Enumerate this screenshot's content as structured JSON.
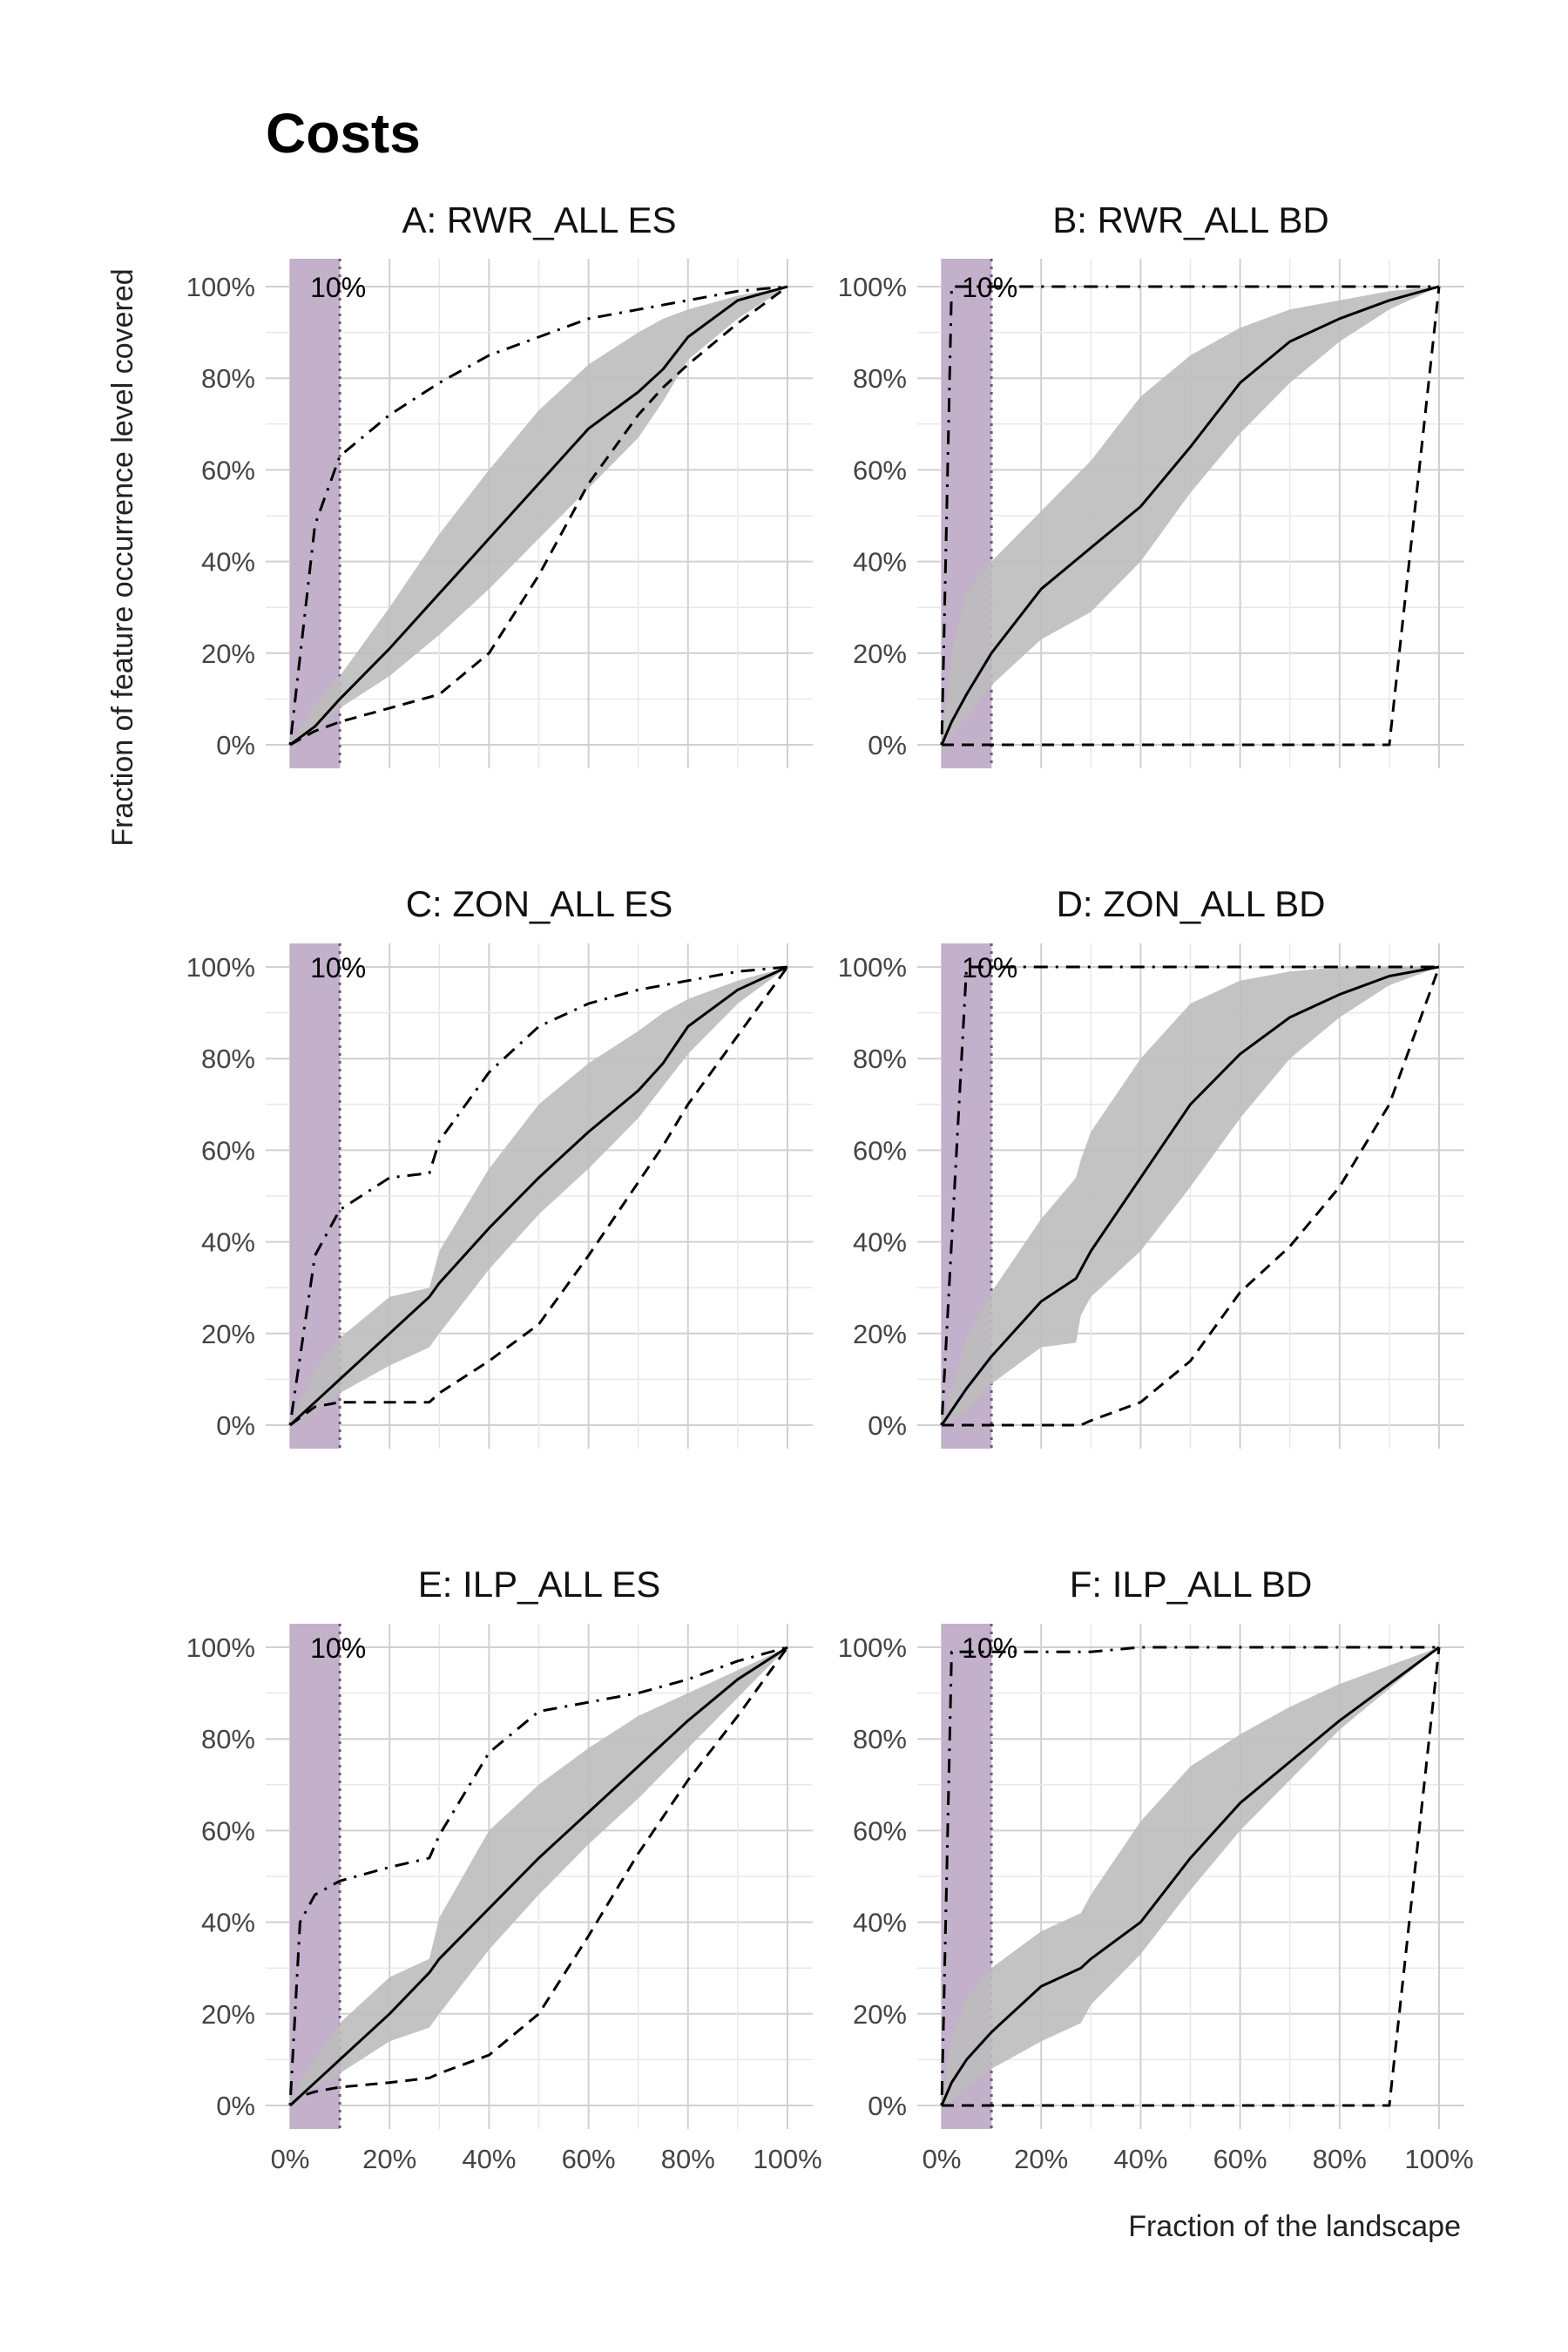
{
  "figure": {
    "title": "Costs",
    "xlabel": "Fraction of the landscape",
    "ylabel": "Fraction of feature occurrence level covered",
    "highlight_label": "10%",
    "highlight_value": 10,
    "x_ticks": [
      "0%",
      "20%",
      "40%",
      "60%",
      "80%",
      "100%"
    ],
    "y_ticks": [
      "0%",
      "20%",
      "40%",
      "60%",
      "80%",
      "100%"
    ],
    "colors": {
      "band": "#bdbdbd",
      "highlight": "#c3b1cb",
      "line": "#000000",
      "grid": "#d9d9d9"
    }
  },
  "chart_data": [
    {
      "type": "line",
      "title": "A: RWR_ALL ES",
      "xlim": [
        0,
        100
      ],
      "ylim": [
        0,
        100
      ],
      "grid": true,
      "x": [
        0,
        5,
        10,
        20,
        30,
        40,
        50,
        60,
        70,
        75,
        80,
        90,
        100
      ],
      "band_lower": [
        0,
        3,
        8,
        15,
        24,
        34,
        45,
        56,
        67,
        75,
        84,
        93,
        100
      ],
      "band_upper": [
        0,
        9,
        15,
        30,
        46,
        60,
        73,
        83,
        90,
        93,
        95,
        98,
        100
      ],
      "series": [
        {
          "style": "solid",
          "values": [
            0,
            4,
            10,
            21,
            33,
            45,
            57,
            69,
            77,
            82,
            89,
            97,
            100
          ]
        },
        {
          "style": "dashed",
          "values": [
            0,
            3,
            5,
            8,
            11,
            20,
            37,
            57,
            72,
            78,
            83,
            92,
            100
          ]
        },
        {
          "style": "dotdash",
          "values": [
            0,
            48,
            63,
            72,
            79,
            85,
            89,
            93,
            95,
            96,
            97,
            99,
            100
          ]
        }
      ]
    },
    {
      "type": "line",
      "title": "B: RWR_ALL BD",
      "xlim": [
        0,
        100
      ],
      "ylim": [
        0,
        100
      ],
      "grid": true,
      "x": [
        0,
        2,
        5,
        10,
        20,
        30,
        40,
        50,
        60,
        70,
        80,
        90,
        100
      ],
      "band_lower": [
        0,
        2,
        6,
        13,
        23,
        29,
        40,
        55,
        68,
        79,
        88,
        95,
        100
      ],
      "band_upper": [
        0,
        20,
        33,
        40,
        51,
        62,
        76,
        85,
        91,
        95,
        97,
        99,
        100
      ],
      "series": [
        {
          "style": "solid",
          "values": [
            0,
            5,
            11,
            20,
            34,
            43,
            52,
            65,
            79,
            88,
            93,
            97,
            100
          ]
        },
        {
          "style": "dashed",
          "values": [
            0,
            0,
            0,
            0,
            0,
            0,
            0,
            0,
            0,
            0,
            0,
            0,
            100
          ]
        },
        {
          "style": "dotdash",
          "values": [
            0,
            100,
            100,
            100,
            100,
            100,
            100,
            100,
            100,
            100,
            100,
            100,
            100
          ]
        }
      ]
    },
    {
      "type": "line",
      "title": "C: ZON_ALL ES",
      "xlim": [
        0,
        100
      ],
      "ylim": [
        0,
        100
      ],
      "grid": true,
      "x": [
        0,
        5,
        10,
        20,
        28,
        30,
        40,
        50,
        60,
        70,
        75,
        80,
        90,
        100
      ],
      "band_lower": [
        0,
        3,
        7,
        13,
        17,
        20,
        34,
        46,
        56,
        67,
        74,
        81,
        92,
        100
      ],
      "band_upper": [
        0,
        12,
        19,
        28,
        30,
        38,
        56,
        70,
        79,
        86,
        90,
        93,
        97,
        100
      ],
      "series": [
        {
          "style": "solid",
          "values": [
            0,
            5,
            10,
            20,
            28,
            31,
            43,
            54,
            64,
            73,
            79,
            87,
            95,
            100
          ]
        },
        {
          "style": "dashed",
          "values": [
            0,
            4,
            5,
            5,
            5,
            7,
            14,
            22,
            37,
            53,
            61,
            70,
            85,
            100
          ]
        },
        {
          "style": "dotdash",
          "values": [
            0,
            37,
            47,
            54,
            55,
            62,
            77,
            87,
            92,
            95,
            96,
            97,
            99,
            100
          ]
        }
      ]
    },
    {
      "type": "line",
      "title": "D: ZON_ALL BD",
      "xlim": [
        0,
        100
      ],
      "ylim": [
        0,
        100
      ],
      "grid": true,
      "x": [
        0,
        5,
        10,
        20,
        27,
        28,
        30,
        40,
        50,
        60,
        70,
        80,
        90,
        100
      ],
      "band_lower": [
        0,
        3,
        9,
        17,
        18,
        24,
        28,
        38,
        52,
        67,
        80,
        89,
        96,
        100
      ],
      "band_upper": [
        0,
        19,
        29,
        45,
        54,
        58,
        64,
        80,
        92,
        97,
        99,
        100,
        100,
        100
      ],
      "series": [
        {
          "style": "solid",
          "values": [
            0,
            8,
            15,
            27,
            32,
            34,
            38,
            54,
            70,
            81,
            89,
            94,
            98,
            100
          ]
        },
        {
          "style": "dashed",
          "values": [
            0,
            0,
            0,
            0,
            0,
            0,
            1,
            5,
            14,
            29,
            39,
            52,
            70,
            100
          ]
        },
        {
          "style": "dotdash",
          "values": [
            0,
            100,
            100,
            100,
            100,
            100,
            100,
            100,
            100,
            100,
            100,
            100,
            100,
            100
          ]
        }
      ]
    },
    {
      "type": "line",
      "title": "E: ILP_ALL ES",
      "xlim": [
        0,
        100
      ],
      "ylim": [
        0,
        100
      ],
      "grid": true,
      "x": [
        0,
        2,
        5,
        10,
        20,
        28,
        30,
        40,
        50,
        60,
        70,
        80,
        90,
        100
      ],
      "band_lower": [
        0,
        1,
        4,
        7,
        14,
        17,
        20,
        34,
        46,
        57,
        67,
        78,
        89,
        100
      ],
      "band_upper": [
        0,
        5,
        10,
        18,
        28,
        32,
        41,
        60,
        70,
        78,
        85,
        90,
        95,
        100
      ],
      "series": [
        {
          "style": "solid",
          "values": [
            0,
            2,
            5,
            10,
            20,
            29,
            32,
            43,
            54,
            64,
            74,
            84,
            93,
            100
          ]
        },
        {
          "style": "dashed",
          "values": [
            0,
            2,
            3,
            4,
            5,
            6,
            7,
            11,
            20,
            37,
            55,
            71,
            85,
            100
          ]
        },
        {
          "style": "dotdash",
          "values": [
            0,
            40,
            46,
            49,
            52,
            54,
            59,
            77,
            86,
            88,
            90,
            93,
            97,
            100
          ]
        }
      ]
    },
    {
      "type": "line",
      "title": "F: ILP_ALL BD",
      "xlim": [
        0,
        100
      ],
      "ylim": [
        0,
        100
      ],
      "grid": true,
      "x": [
        0,
        2,
        5,
        10,
        20,
        28,
        30,
        40,
        50,
        60,
        70,
        80,
        90,
        100
      ],
      "band_lower": [
        0,
        1,
        4,
        8,
        14,
        18,
        22,
        33,
        47,
        60,
        71,
        82,
        91,
        100
      ],
      "band_upper": [
        0,
        15,
        23,
        30,
        38,
        42,
        46,
        62,
        74,
        81,
        87,
        92,
        96,
        100
      ],
      "series": [
        {
          "style": "solid",
          "values": [
            0,
            5,
            10,
            16,
            26,
            30,
            32,
            40,
            54,
            66,
            75,
            84,
            92,
            100
          ]
        },
        {
          "style": "dashed",
          "values": [
            0,
            0,
            0,
            0,
            0,
            0,
            0,
            0,
            0,
            0,
            0,
            0,
            0,
            100
          ]
        },
        {
          "style": "dotdash",
          "values": [
            0,
            99,
            99,
            99,
            99,
            99,
            99,
            100,
            100,
            100,
            100,
            100,
            100,
            100
          ]
        }
      ]
    }
  ]
}
